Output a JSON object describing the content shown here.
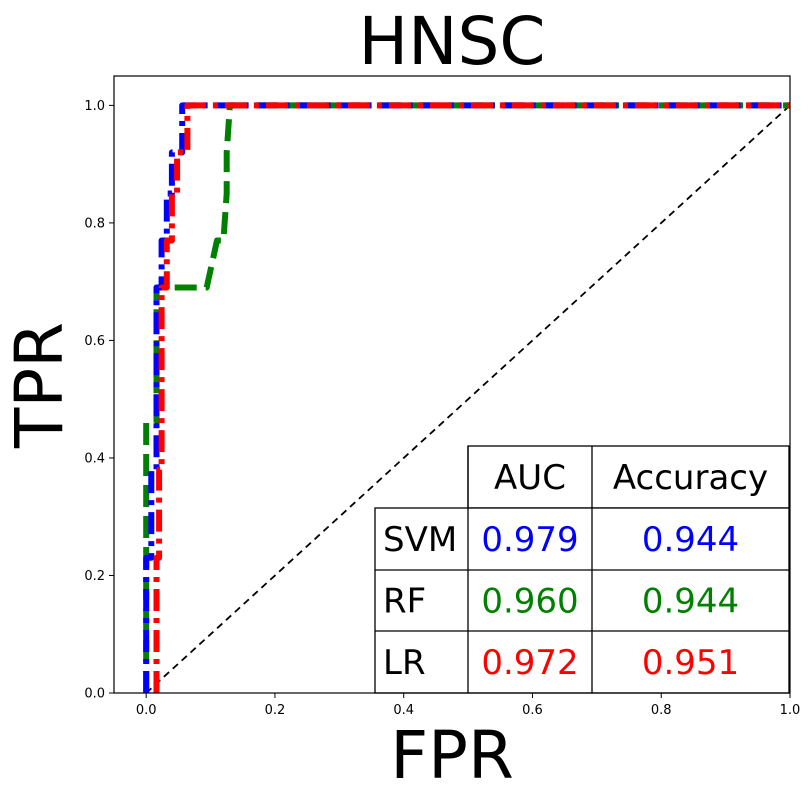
{
  "chart_data": {
    "type": "line",
    "title": "HNSC",
    "xlabel": "FPR",
    "ylabel": "TPR",
    "xlim": [
      -0.05,
      1.0
    ],
    "ylim": [
      0.0,
      1.05
    ],
    "xticks": [
      0.0,
      0.2,
      0.4,
      0.6,
      0.8,
      1.0
    ],
    "xtick_labels": [
      "0.0",
      "0.2",
      "0.4",
      "0.6",
      "0.8",
      "1.0"
    ],
    "yticks": [
      0.0,
      0.2,
      0.4,
      0.6,
      0.8,
      1.0
    ],
    "ytick_labels": [
      "0.0",
      "0.2",
      "0.4",
      "0.6",
      "0.8",
      "1.0"
    ],
    "grid": false,
    "series": [
      {
        "name": "SVM",
        "color": "#0000ff",
        "dash": "dashdot",
        "x": [
          0.0,
          0.0,
          0.008,
          0.008,
          0.016,
          0.016,
          0.024,
          0.024,
          0.032,
          0.032,
          0.04,
          0.04,
          0.056,
          0.056,
          1.0
        ],
        "y": [
          0.0,
          0.23,
          0.23,
          0.38,
          0.38,
          0.69,
          0.69,
          0.77,
          0.77,
          0.85,
          0.85,
          0.92,
          0.92,
          1.0,
          1.0
        ]
      },
      {
        "name": "RF",
        "color": "#008000",
        "dash": "dashed",
        "x": [
          0.0,
          0.0,
          0.008,
          0.008,
          0.016,
          0.016,
          0.094,
          0.11,
          0.12,
          0.125,
          0.125,
          0.13,
          1.0
        ],
        "y": [
          0.0,
          0.46,
          0.46,
          0.46,
          0.46,
          0.69,
          0.69,
          0.77,
          0.77,
          0.85,
          0.92,
          1.0,
          1.0
        ]
      },
      {
        "name": "LR",
        "color": "#ff0000",
        "dash": "dashdot",
        "x": [
          0.016,
          0.016,
          0.02,
          0.02,
          0.024,
          0.024,
          0.032,
          0.032,
          0.04,
          0.04,
          0.048,
          0.048,
          0.064,
          0.064,
          1.0
        ],
        "y": [
          0.0,
          0.23,
          0.23,
          0.38,
          0.38,
          0.69,
          0.69,
          0.77,
          0.77,
          0.85,
          0.85,
          0.92,
          0.92,
          1.0,
          1.0
        ]
      },
      {
        "name": "chance",
        "color": "#000000",
        "dash": "dashed",
        "x": [
          0.0,
          1.0
        ],
        "y": [
          0.0,
          1.0
        ]
      }
    ],
    "table": {
      "columns": [
        "AUC",
        "Accuracy"
      ],
      "rows": [
        {
          "label": "SVM",
          "auc": "0.979",
          "accuracy": "0.944",
          "color": "#0000ff"
        },
        {
          "label": "RF",
          "auc": "0.960",
          "accuracy": "0.944",
          "color": "#008000"
        },
        {
          "label": "LR",
          "auc": "0.972",
          "accuracy": "0.951",
          "color": "#ff0000"
        }
      ]
    }
  }
}
